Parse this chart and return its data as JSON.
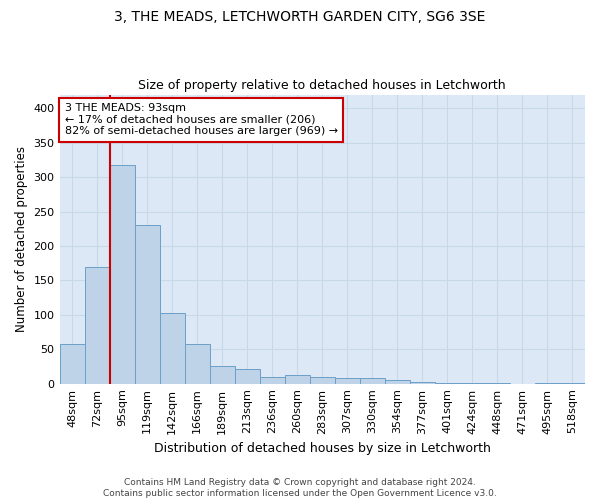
{
  "title": "3, THE MEADS, LETCHWORTH GARDEN CITY, SG6 3SE",
  "subtitle": "Size of property relative to detached houses in Letchworth",
  "xlabel": "Distribution of detached houses by size in Letchworth",
  "ylabel": "Number of detached properties",
  "categories": [
    "48sqm",
    "72sqm",
    "95sqm",
    "119sqm",
    "142sqm",
    "166sqm",
    "189sqm",
    "213sqm",
    "236sqm",
    "260sqm",
    "283sqm",
    "307sqm",
    "330sqm",
    "354sqm",
    "377sqm",
    "401sqm",
    "424sqm",
    "448sqm",
    "471sqm",
    "495sqm",
    "518sqm"
  ],
  "values": [
    57,
    170,
    318,
    230,
    103,
    57,
    25,
    22,
    10,
    12,
    10,
    8,
    8,
    5,
    2,
    1,
    1,
    1,
    0,
    1,
    1
  ],
  "bar_color": "#bed3e8",
  "bar_edge_color": "#6ca0c8",
  "property_line_color": "#cc0000",
  "annotation_text": "3 THE MEADS: 93sqm\n← 17% of detached houses are smaller (206)\n82% of semi-detached houses are larger (969) →",
  "annotation_box_color": "#ffffff",
  "annotation_box_edge": "#cc0000",
  "ylim": [
    0,
    420
  ],
  "yticks": [
    0,
    50,
    100,
    150,
    200,
    250,
    300,
    350,
    400
  ],
  "background_color": "#dce8f5",
  "grid_color": "#c8d8e8",
  "footer_text": "Contains HM Land Registry data © Crown copyright and database right 2024.\nContains public sector information licensed under the Open Government Licence v3.0.",
  "title_fontsize": 10,
  "subtitle_fontsize": 9,
  "xlabel_fontsize": 9,
  "ylabel_fontsize": 8.5,
  "tick_fontsize": 8,
  "footer_fontsize": 6.5
}
